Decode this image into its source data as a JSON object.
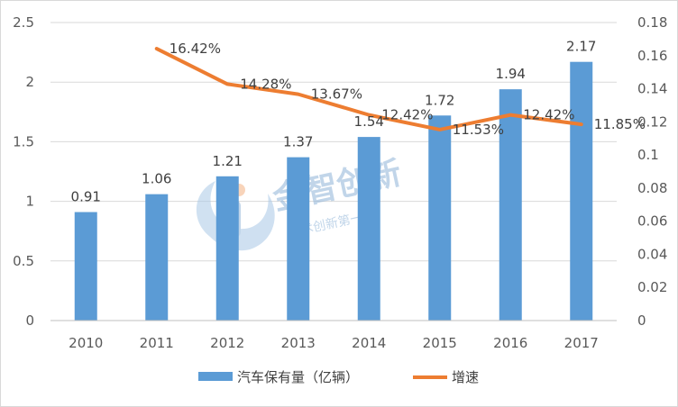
{
  "chart_data": {
    "type": "bar",
    "categories": [
      "2010",
      "2011",
      "2012",
      "2013",
      "2014",
      "2015",
      "2016",
      "2017"
    ],
    "series": [
      {
        "name": "汽车保有量（亿辆）",
        "kind": "bar",
        "axis": "left",
        "color": "#5b9bd5",
        "values": [
          0.91,
          1.06,
          1.21,
          1.37,
          1.54,
          1.72,
          1.94,
          2.17
        ],
        "labels": [
          "0.91",
          "1.06",
          "1.21",
          "1.37",
          "1.54",
          "1.72",
          "1.94",
          "2.17"
        ]
      },
      {
        "name": "增速",
        "kind": "line",
        "axis": "right",
        "color": "#ed7d31",
        "values": [
          null,
          0.1642,
          0.1428,
          0.1367,
          0.1242,
          0.1153,
          0.1242,
          0.1185
        ],
        "labels": [
          "",
          "16.42%",
          "14.28%",
          "13.67%",
          "12.42%",
          "11.53%",
          "12.42%",
          "11.85%"
        ]
      }
    ],
    "y_left": {
      "min": 0,
      "max": 2.5,
      "ticks": [
        "0",
        "0.5",
        "1",
        "1.5",
        "2",
        "2.5"
      ]
    },
    "y_right": {
      "min": 0,
      "max": 0.18,
      "ticks": [
        "0",
        "0.02",
        "0.04",
        "0.06",
        "0.08",
        "0.1",
        "0.12",
        "0.14",
        "0.16",
        "0.18"
      ]
    },
    "grid": true,
    "legend_position": "bottom"
  },
  "watermark": {
    "title": "金智创新",
    "subtitle": "技术创新第一个"
  }
}
